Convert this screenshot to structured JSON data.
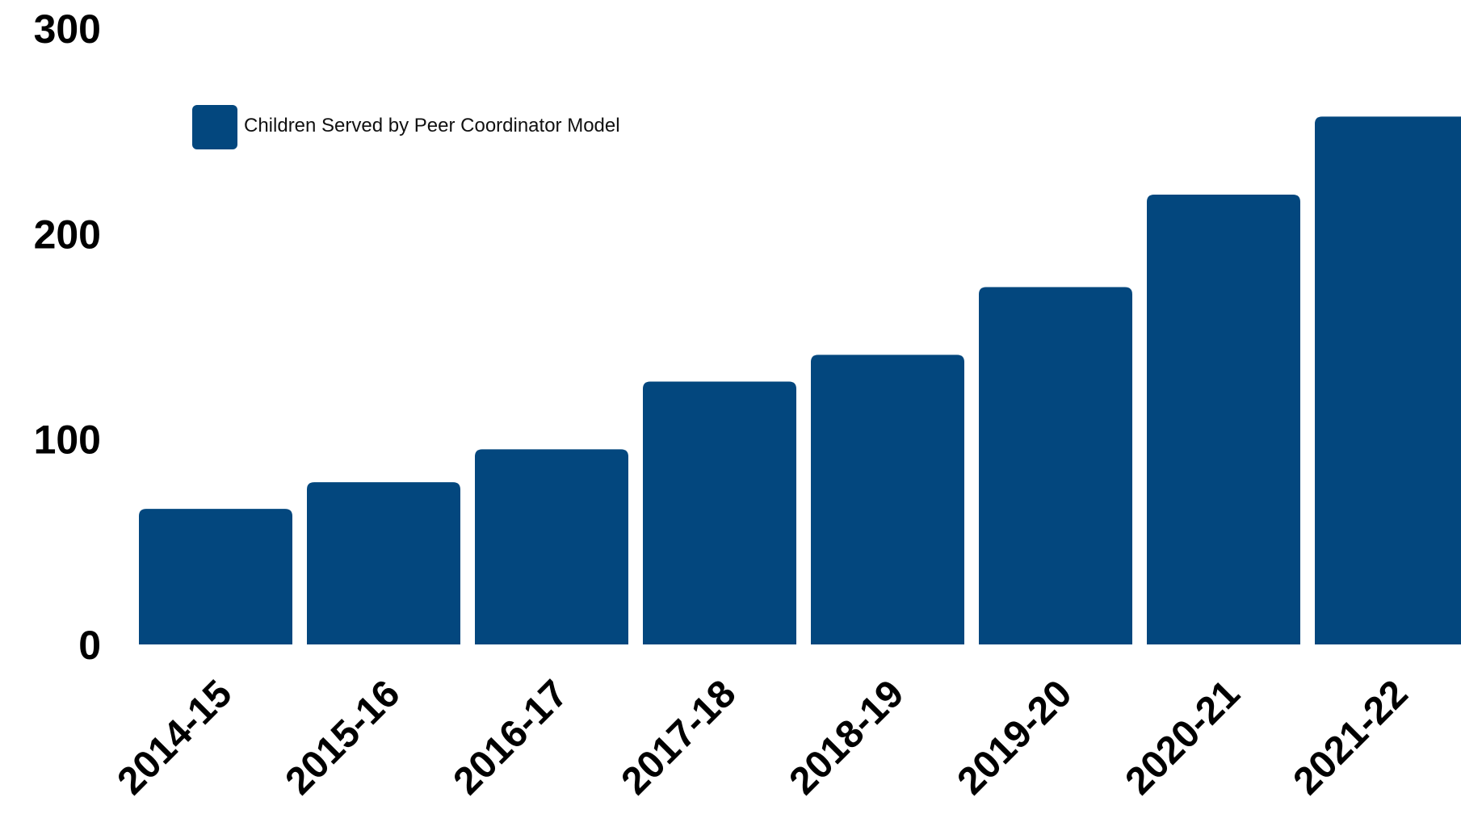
{
  "chart_data": {
    "type": "bar",
    "categories": [
      "2014-15",
      "2015-16",
      "2016-17",
      "2017-18",
      "2018-19",
      "2019-20",
      "2020-21",
      "2021-22"
    ],
    "series": [
      {
        "name": "Children Served by Peer Coordinator Model",
        "values": [
          66,
          79,
          95,
          128,
          141,
          174,
          219,
          257
        ]
      }
    ],
    "ylim": [
      0,
      300
    ],
    "yticks": [
      0,
      100,
      200,
      300
    ],
    "grid": false,
    "legend_position": "top-left",
    "bar_color": "#03477e"
  }
}
